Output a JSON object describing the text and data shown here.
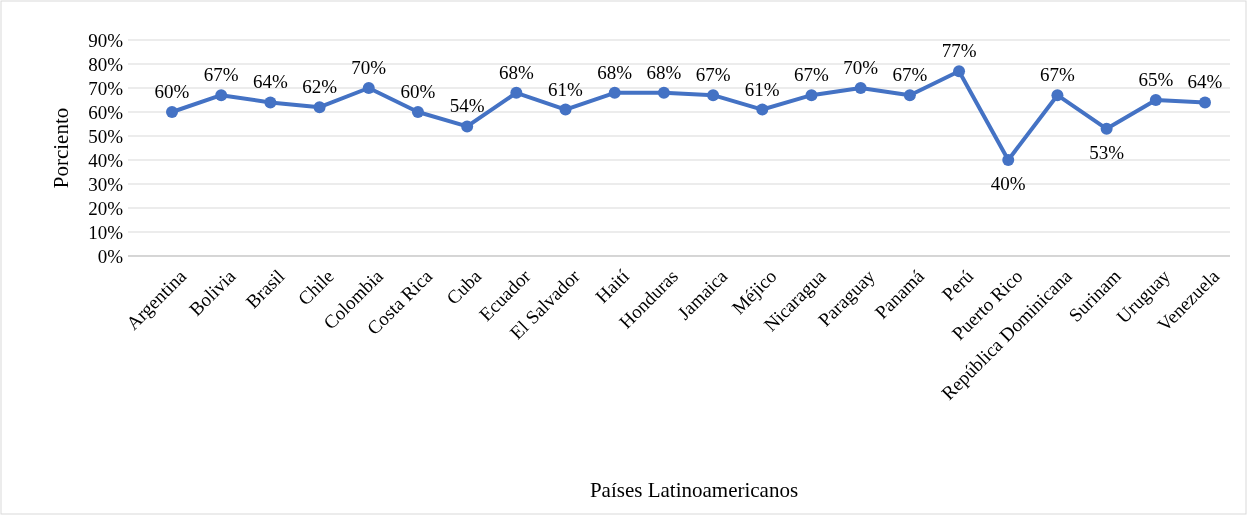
{
  "chart_data": {
    "type": "line",
    "xlabel": "Países Latinoamericanos",
    "ylabel": "Porciento",
    "categories": [
      "Argentina",
      "Bolivia",
      "Brasil",
      "Chile",
      "Colombia",
      "Costa Rica",
      "Cuba",
      "Ecuador",
      "El Salvador",
      "Haití",
      "Honduras",
      "Jamaica",
      "Méjico",
      "Nicaragua",
      "Paraguay",
      "Panamá",
      "Perú",
      "Puerto Rico",
      "República Dominicana",
      "Surinam",
      "Uruguay",
      "Venezuela"
    ],
    "series": [
      {
        "color": "#4472c4",
        "values": [
          60,
          67,
          64,
          62,
          70,
          60,
          54,
          68,
          61,
          68,
          68,
          67,
          61,
          67,
          70,
          67,
          77,
          40,
          67,
          53,
          65,
          64
        ],
        "value_labels": [
          "60%",
          "67%",
          "64%",
          "62%",
          "70%",
          "60%",
          "54%",
          "68%",
          "61%",
          "68%",
          "68%",
          "67%",
          "61%",
          "67%",
          "70%",
          "67%",
          "77%",
          "40%",
          "67%",
          "53%",
          "65%",
          "64%"
        ]
      }
    ],
    "ylim": [
      0,
      90
    ],
    "yticks": [
      {
        "value": 0,
        "label": "0%"
      },
      {
        "value": 10,
        "label": "10%"
      },
      {
        "value": 20,
        "label": "20%"
      },
      {
        "value": 30,
        "label": "30%"
      },
      {
        "value": 40,
        "label": "40%"
      },
      {
        "value": 50,
        "label": "50%"
      },
      {
        "value": 60,
        "label": "60%"
      },
      {
        "value": 70,
        "label": "70%"
      },
      {
        "value": 80,
        "label": "80%"
      },
      {
        "value": 90,
        "label": "90%"
      }
    ],
    "grid": "y",
    "marker": "circle",
    "line_style": "solid"
  }
}
